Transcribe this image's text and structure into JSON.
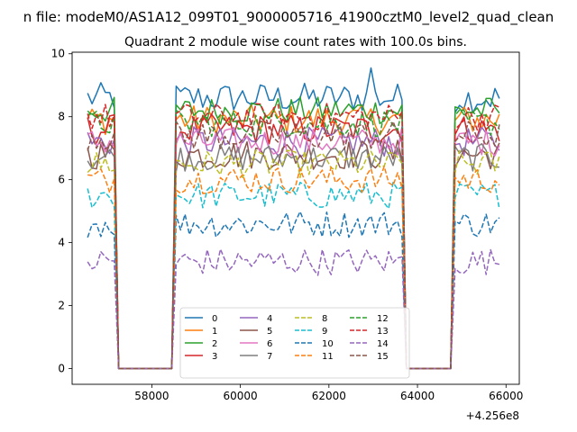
{
  "chart_data": {
    "type": "line",
    "suptitle": "n file: modeM0/AS1A12_099T01_9000005716_41900cztM0_level2_quad_clean",
    "title": "Quadrant 2 module wise count rates with 100.0s bins.",
    "xlabel": "",
    "ylabel": "",
    "x_offset_label": "+4.256e8",
    "xlim": [
      56200,
      66300
    ],
    "ylim": [
      -0.5,
      10.05
    ],
    "xticks": [
      58000,
      60000,
      62000,
      64000,
      66000
    ],
    "xtick_labels": [
      "58000",
      "60000",
      "62000",
      "64000",
      "66000"
    ],
    "yticks": [
      0,
      2,
      4,
      6,
      8,
      10
    ],
    "ytick_labels": [
      "0",
      "2",
      "4",
      "6",
      "8",
      "10"
    ],
    "segments": [
      {
        "start": 56550,
        "end": 57150,
        "step": 100
      },
      {
        "start": 58550,
        "end": 63650,
        "step": 100
      },
      {
        "start": 64850,
        "end": 65850,
        "step": 100
      }
    ],
    "legend": {
      "placement": "lower-center",
      "columns": 4
    },
    "series": [
      {
        "name": "0",
        "color": "#1f77b4",
        "dash": "solid",
        "level": 8.6,
        "noise": 0.22,
        "peak": {
          "x": 62950,
          "value": 9.55
        }
      },
      {
        "name": "1",
        "color": "#ff7f0e",
        "dash": "solid",
        "level": 7.9,
        "noise": 0.22
      },
      {
        "name": "2",
        "color": "#2ca02c",
        "dash": "solid",
        "level": 8.2,
        "noise": 0.2
      },
      {
        "name": "3",
        "color": "#d62728",
        "dash": "solid",
        "level": 7.6,
        "noise": 0.22
      },
      {
        "name": "4",
        "color": "#9467bd",
        "dash": "solid",
        "level": 7.2,
        "noise": 0.22
      },
      {
        "name": "5",
        "color": "#8c564b",
        "dash": "solid",
        "level": 6.8,
        "noise": 0.22
      },
      {
        "name": "6",
        "color": "#e377c2",
        "dash": "solid",
        "level": 7.2,
        "noise": 0.2
      },
      {
        "name": "7",
        "color": "#7f7f7f",
        "dash": "solid",
        "level": 6.7,
        "noise": 0.2
      },
      {
        "name": "8",
        "color": "#bcbd22",
        "dash": "dashed",
        "level": 6.5,
        "noise": 0.2
      },
      {
        "name": "9",
        "color": "#17becf",
        "dash": "dashed",
        "level": 5.5,
        "noise": 0.2
      },
      {
        "name": "10",
        "color": "#1f77b4",
        "dash": "dashed",
        "level": 4.6,
        "noise": 0.2
      },
      {
        "name": "11",
        "color": "#ff7f0e",
        "dash": "dashed",
        "level": 6.0,
        "noise": 0.2
      },
      {
        "name": "12",
        "color": "#2ca02c",
        "dash": "dashed",
        "level": 7.8,
        "noise": 0.2
      },
      {
        "name": "13",
        "color": "#d62728",
        "dash": "dashed",
        "level": 8.0,
        "noise": 0.2
      },
      {
        "name": "14",
        "color": "#9467bd",
        "dash": "dashed",
        "level": 3.4,
        "noise": 0.2
      },
      {
        "name": "15",
        "color": "#8c564b",
        "dash": "dashed",
        "level": 7.4,
        "noise": 0.22
      }
    ]
  }
}
